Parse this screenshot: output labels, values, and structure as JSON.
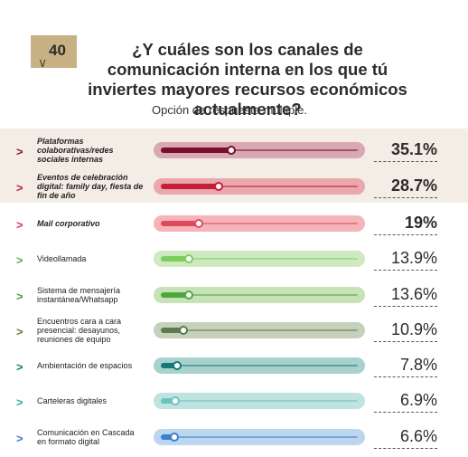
{
  "question": {
    "number": "40",
    "title": "¿Y cuáles son los canales de comunicación interna en los que tú inviertes mayores recursos económicos actualmente?",
    "subtitle": "Opción de respuesta múltiple."
  },
  "chart_data": {
    "type": "bar",
    "title": "¿Y cuáles son los canales de comunicación interna en los que tú inviertes mayores recursos económicos actualmente?",
    "subtitle": "Opción de respuesta múltiple.",
    "categories": [
      "Plataformas colaborativas/redes sociales internas",
      "Eventos de celebración digital: family day, fiesta de fin de año",
      "Mail corporativo",
      "Videollamada",
      "Sistema de mensajería instantánea/Whatsapp",
      "Encuentros cara a cara presencial: desayunos, reuniones de equipo",
      "Ambientación de espacios",
      "Carteleras digitales",
      "Comunicación en Cascada en formato digital"
    ],
    "values": [
      35.1,
      28.7,
      19,
      13.9,
      13.6,
      10.9,
      7.8,
      6.9,
      6.6
    ],
    "value_labels": [
      "35.1%",
      "28.7%",
      "19%",
      "13.9%",
      "13.6%",
      "10.9%",
      "7.8%",
      "6.9%",
      "6.6%"
    ],
    "colors": [
      {
        "track": "#d9a9b2",
        "fill": "#7a0e2c",
        "chev": "#8b1a3a"
      },
      {
        "track": "#eaa7ad",
        "fill": "#c41f35",
        "chev": "#c41f35"
      },
      {
        "track": "#f4b4ba",
        "fill": "#e04a5c",
        "chev": "#d9384c"
      },
      {
        "track": "#cfeac0",
        "fill": "#7ccf5c",
        "chev": "#5fb34a"
      },
      {
        "track": "#c7e2b8",
        "fill": "#4fa83a",
        "chev": "#4a9c3a"
      },
      {
        "track": "#c6d1bc",
        "fill": "#5e7a4a",
        "chev": "#5e7a4a"
      },
      {
        "track": "#a9d2cf",
        "fill": "#137a78",
        "chev": "#137a78"
      },
      {
        "track": "#bfe3e0",
        "fill": "#6cc3bd",
        "chev": "#3aa7a0"
      },
      {
        "track": "#bcd6f0",
        "fill": "#3c7fd0",
        "chev": "#3c7fd0"
      }
    ],
    "highlighted_rows": [
      0,
      1
    ],
    "bold_labels": [
      0,
      1,
      2
    ],
    "bold_values": [
      0,
      1,
      2
    ]
  }
}
